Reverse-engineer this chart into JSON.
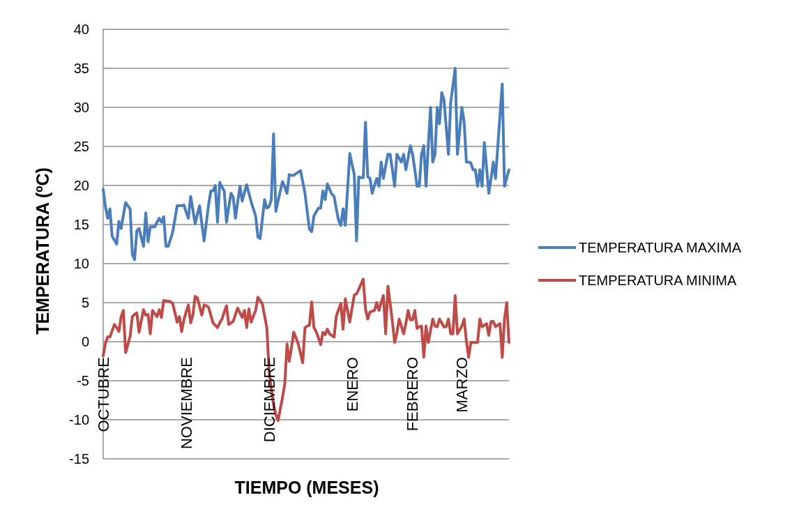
{
  "chart_data": {
    "type": "line",
    "xlabel": "TIEMPO (MESES)",
    "ylabel": "TEMPERATURA (ºC)",
    "ylim": [
      -15,
      40
    ],
    "yticks": [
      -15,
      -10,
      -5,
      0,
      5,
      10,
      15,
      20,
      25,
      30,
      35,
      40
    ],
    "grid": "y",
    "legend": "right",
    "marker": "none",
    "line_style": "solid",
    "categories": [
      "OCTUBRE",
      null,
      null,
      null,
      null,
      null,
      null,
      null,
      null,
      null,
      null,
      null,
      null,
      null,
      null,
      null,
      null,
      null,
      null,
      null,
      null,
      null,
      null,
      null,
      null,
      null,
      null,
      null,
      null,
      null,
      null,
      null,
      null,
      null,
      null,
      null,
      null,
      "NOVIEMBRE",
      null,
      null,
      null,
      null,
      null,
      null,
      null,
      null,
      null,
      null,
      null,
      null,
      null,
      null,
      null,
      null,
      null,
      null,
      null,
      null,
      null,
      null,
      null,
      null,
      null,
      null,
      null,
      null,
      null,
      null,
      null,
      null,
      null,
      null,
      null,
      null,
      "DICIEMBRE",
      null,
      null,
      null,
      null,
      null,
      null,
      null,
      null,
      null,
      null,
      null,
      null,
      null,
      null,
      null,
      null,
      null,
      null,
      null,
      null,
      null,
      null,
      null,
      null,
      null,
      null,
      null,
      null,
      null,
      null,
      null,
      null,
      null,
      null,
      null,
      null,
      "ENERO",
      null,
      null,
      null,
      null,
      null,
      null,
      null,
      null,
      null,
      null,
      null,
      null,
      null,
      null,
      null,
      null,
      null,
      null,
      null,
      null,
      null,
      null,
      null,
      null,
      null,
      null,
      "FEBRERO",
      null,
      null,
      null,
      null,
      null,
      null,
      null,
      null,
      null,
      null,
      null,
      null,
      null,
      null,
      null,
      null,
      null,
      null,
      null,
      null,
      null,
      "MARZO",
      null,
      null,
      null,
      null,
      null,
      null,
      null,
      null,
      null,
      null,
      null,
      null,
      null,
      null,
      null,
      null,
      null,
      null,
      null,
      null,
      null
    ],
    "series": [
      {
        "name": "TEMPERATURA MAXIMA",
        "color": "#4a7ebb",
        "values": [
          19.5,
          17.3,
          15.8,
          17,
          13.5,
          13,
          12.5,
          15.4,
          14.5,
          16.2,
          17.8,
          17.4,
          17,
          11.2,
          10.5,
          14.2,
          14.5,
          13.3,
          12.2,
          16.5,
          12.8,
          14.7,
          14.7,
          14.7,
          15.3,
          15.8,
          15.3,
          16,
          12.2,
          12.2,
          13.1,
          14,
          15.7,
          17.4,
          17.4,
          17.4,
          17.5,
          16.6,
          15.8,
          18.6,
          16.9,
          15.1,
          16.3,
          17.4,
          15.1,
          12.9,
          15.2,
          17.5,
          19.3,
          19.3,
          20,
          15.3,
          20.4,
          19.8,
          19.3,
          15.3,
          17.2,
          19,
          18.5,
          15.8,
          17.9,
          19.9,
          18,
          19.1,
          20.1,
          19,
          17.9,
          17,
          16.1,
          13.4,
          13.2,
          15.7,
          18.2,
          17.1,
          17.3,
          18.2,
          26.6,
          16.7,
          18,
          19.3,
          20.5,
          19.8,
          19,
          21.4,
          21.3,
          21.3,
          21.5,
          21.7,
          21.9,
          20.5,
          19,
          16.7,
          14.4,
          14.1,
          16.1,
          16.6,
          17.1,
          17.1,
          19.3,
          18.2,
          20.2,
          19.5,
          18.9,
          18.6,
          17,
          15.5,
          14.9,
          17,
          14.9,
          19.5,
          24.1,
          22.7,
          21.4,
          12.9,
          21.1,
          21,
          21,
          28.1,
          21.1,
          20.9,
          19,
          20,
          20.9,
          19.9,
          23,
          20.9,
          22.5,
          24,
          24,
          22,
          19.9,
          24,
          23.5,
          23,
          24,
          22,
          23.5,
          25.1,
          24,
          22,
          19.9,
          19.9,
          24,
          25.1,
          19.9,
          25,
          30,
          23,
          24,
          30,
          27.9,
          31.9,
          31,
          27.5,
          24,
          30.6,
          32.8,
          35,
          24,
          27,
          30,
          28.1,
          23,
          23,
          22.9,
          22,
          22,
          19.9,
          22,
          19.9,
          25.5,
          22.3,
          19,
          20.9,
          23,
          20.9,
          25,
          29,
          33,
          19.9,
          21,
          22
        ]
      },
      {
        "name": "TEMPERATURA MINIMA",
        "color": "#be4b48",
        "values": [
          -1.8,
          -0.2,
          0.6,
          0.6,
          1.4,
          2.2,
          1.8,
          1.3,
          3.2,
          4,
          -1.4,
          -0.4,
          0.7,
          3.2,
          3.5,
          3.7,
          1.2,
          2.7,
          4.1,
          3.4,
          3.5,
          1,
          4,
          3.6,
          3.2,
          4.1,
          3.1,
          5.3,
          5.2,
          5.2,
          5.1,
          4.9,
          3.7,
          2.5,
          3.2,
          1.3,
          2.8,
          3.8,
          4.7,
          2.4,
          3.4,
          5.8,
          5.6,
          4.5,
          3.4,
          4.7,
          4.6,
          4.4,
          3.4,
          2.4,
          2.1,
          1.8,
          2.4,
          2.9,
          3.8,
          4.6,
          2.2,
          2.4,
          2.6,
          3.5,
          4.3,
          3.7,
          3.1,
          4,
          1.8,
          4.2,
          2.5,
          3.3,
          4,
          5.7,
          5.3,
          4.8,
          3.3,
          1.8,
          -3.9,
          -6,
          -8.1,
          -9.3,
          -10.1,
          -8.6,
          -7.1,
          -5.4,
          -0.3,
          -2.5,
          -0.7,
          1.2,
          0.5,
          -0.3,
          -1.5,
          -2.7,
          1.8,
          2,
          2.1,
          5.1,
          1.8,
          1.3,
          0.5,
          -0.4,
          1.2,
          0.9,
          1.6,
          1,
          0.8,
          0.6,
          3.3,
          4.1,
          4.9,
          1.6,
          5.5,
          4,
          2.5,
          4.3,
          6,
          6.1,
          6.7,
          7.4,
          8,
          4.2,
          2.9,
          3.8,
          3.9,
          4,
          5,
          4,
          5,
          5.9,
          1,
          7.1,
          4.9,
          2.6,
          -0.1,
          1.1,
          2.9,
          2,
          1,
          2.3,
          4,
          2.8,
          2.8,
          4,
          1.7,
          1.9,
          2,
          -2,
          2,
          -0.1,
          1.4,
          2.9,
          2,
          1.9,
          2.9,
          2.4,
          1.9,
          1.9,
          2.9,
          1,
          1,
          5.9,
          1,
          1.5,
          2,
          2.9,
          0.1,
          -2,
          -0.1,
          -0.1,
          -0.1,
          -0.1,
          2.9,
          1.9,
          2.1,
          2.3,
          0.8,
          2.6,
          2.6,
          1.9,
          2.1,
          2.3,
          -2,
          2.9,
          5,
          -0.1
        ]
      }
    ]
  }
}
